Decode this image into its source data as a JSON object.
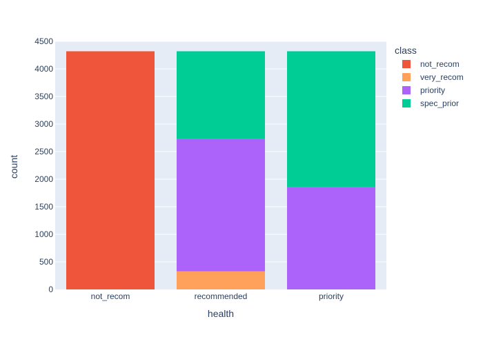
{
  "chart_data": {
    "type": "bar",
    "barmode": "stack",
    "categories": [
      "not_recom",
      "recommended",
      "priority"
    ],
    "series": [
      {
        "name": "not_recom",
        "color": "#EF553B",
        "values": [
          4320,
          0,
          0
        ]
      },
      {
        "name": "very_recom",
        "color": "#FFA15A",
        "values": [
          0,
          328,
          0
        ]
      },
      {
        "name": "priority",
        "color": "#AB63FA",
        "values": [
          0,
          2406,
          1860
        ]
      },
      {
        "name": "spec_prior",
        "color": "#00CC96",
        "values": [
          0,
          1586,
          2460
        ]
      }
    ],
    "xlabel": "health",
    "ylabel": "count",
    "ylim": [
      0,
      4500
    ],
    "yticks": [
      0,
      500,
      1000,
      1500,
      2000,
      2500,
      3000,
      3500,
      4000,
      4500
    ],
    "grid": true,
    "legend": {
      "title": "class",
      "position": "top-right"
    },
    "colors": {
      "plot_bg": "#E5ECF6",
      "grid": "#ffffff",
      "text": "#2a3f5f"
    }
  }
}
